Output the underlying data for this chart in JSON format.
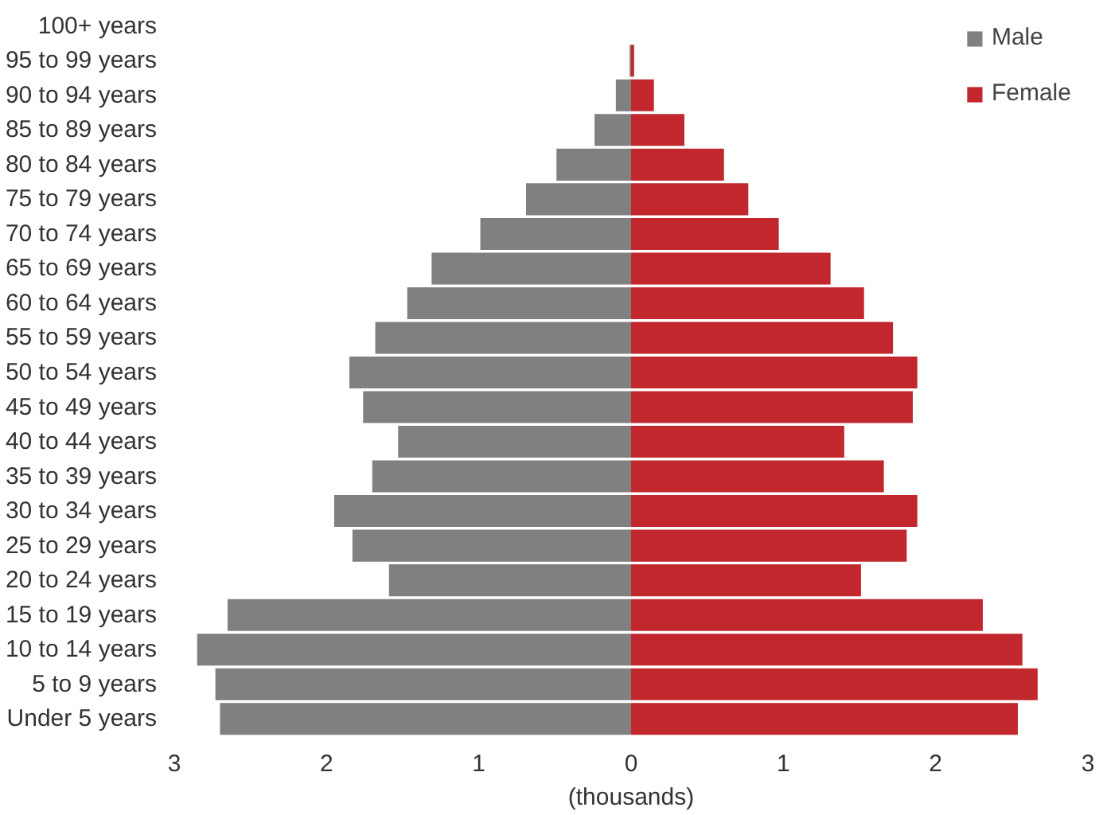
{
  "chart_data": {
    "type": "bar",
    "orientation": "horizontal",
    "xlabel": "(thousands)",
    "categories": [
      "100+ years",
      "95 to 99 years",
      "90 to 94 years",
      "85 to 89 years",
      "80 to 84 years",
      "75 to 79 years",
      "70 to 74 years",
      "65 to 69 years",
      "60 to 64 years",
      "55 to 59 years",
      "50 to 54 years",
      "45 to 49 years",
      "40 to 44 years",
      "35 to 39 years",
      "30 to 34 years",
      "25 to 29 years",
      "20 to 24 years",
      "15 to 19 years",
      "10 to 14 years",
      "5 to 9 years",
      "Under 5 years"
    ],
    "series": [
      {
        "name": "Male",
        "color": "#808080",
        "values": [
          0,
          -0.01,
          -0.1,
          -0.24,
          -0.49,
          -0.69,
          -0.99,
          -1.31,
          -1.47,
          -1.68,
          -1.85,
          -1.76,
          -1.53,
          -1.7,
          -1.95,
          -1.83,
          -1.59,
          -2.65,
          -2.85,
          -2.73,
          -2.7
        ]
      },
      {
        "name": "Female",
        "color": "#c1272d",
        "values": [
          0,
          0.02,
          0.15,
          0.35,
          0.61,
          0.77,
          0.97,
          1.31,
          1.53,
          1.72,
          1.88,
          1.85,
          1.4,
          1.66,
          1.88,
          1.81,
          1.51,
          2.31,
          2.57,
          2.67,
          2.54
        ]
      }
    ],
    "xlim": [
      -3,
      3
    ],
    "xticks": [
      {
        "value": -3,
        "label": "3"
      },
      {
        "value": -2,
        "label": "2"
      },
      {
        "value": -1,
        "label": "1"
      },
      0,
      1,
      2,
      3
    ],
    "stacked": true,
    "grid": false,
    "legend": "top right"
  }
}
